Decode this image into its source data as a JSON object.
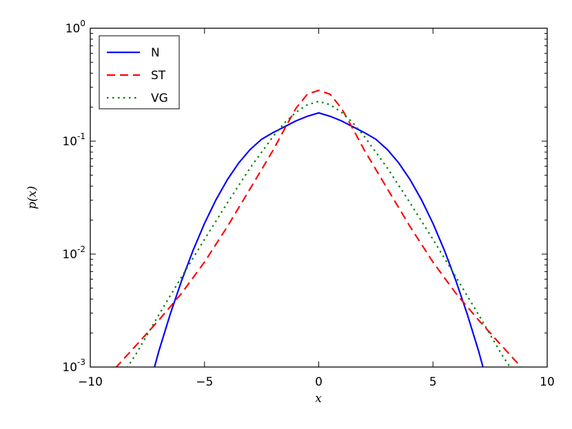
{
  "chart_data": {
    "type": "line",
    "xlabel": "x",
    "ylabel": "p(x)",
    "xlim": [
      -10,
      10
    ],
    "ylim": [
      0.001,
      1
    ],
    "yscale": "log",
    "grid": false,
    "legend_position": "top-left",
    "x_ticks": [
      {
        "value": -10,
        "label": "−10"
      },
      {
        "value": -5,
        "label": "−5"
      },
      {
        "value": 0,
        "label": "0"
      },
      {
        "value": 5,
        "label": "5"
      },
      {
        "value": 10,
        "label": "10"
      }
    ],
    "y_ticks": [
      {
        "value": 0.001,
        "base": "10",
        "exp": "-3"
      },
      {
        "value": 0.01,
        "base": "10",
        "exp": "-2"
      },
      {
        "value": 0.1,
        "base": "10",
        "exp": "-1"
      },
      {
        "value": 1,
        "base": "10",
        "exp": "0"
      }
    ],
    "series": [
      {
        "name": "N",
        "color": "#0000ff",
        "dash": "solid",
        "x": [
          -7.2,
          -7,
          -6.5,
          -6,
          -5.5,
          -5,
          -4.5,
          -4,
          -3.5,
          -3,
          -2.5,
          -2,
          -1.5,
          -1,
          -0.5,
          0,
          0.5,
          1,
          1.5,
          2,
          2.5,
          3,
          3.5,
          4,
          4.5,
          5,
          5.5,
          6,
          6.5,
          7,
          7.2
        ],
        "y": [
          0.00098,
          0.00138,
          0.00294,
          0.00584,
          0.0108,
          0.0187,
          0.0302,
          0.0456,
          0.0642,
          0.0844,
          0.104,
          0.119,
          0.134,
          0.151,
          0.166,
          0.178,
          0.166,
          0.151,
          0.134,
          0.119,
          0.104,
          0.0844,
          0.0642,
          0.0456,
          0.0302,
          0.0187,
          0.0108,
          0.00584,
          0.00294,
          0.00138,
          0.00098
        ]
      },
      {
        "name": "ST",
        "color": "#ff0000",
        "dash": "dashed",
        "x": [
          -8.9,
          -8,
          -7,
          -6,
          -5,
          -4,
          -3,
          -2,
          -1.5,
          -1,
          -0.5,
          0,
          0.5,
          1,
          1.5,
          2,
          3,
          4,
          5,
          6,
          7,
          8,
          8.9
        ],
        "y": [
          0.00098,
          0.00155,
          0.0026,
          0.0045,
          0.0085,
          0.0175,
          0.038,
          0.083,
          0.128,
          0.195,
          0.26,
          0.282,
          0.26,
          0.195,
          0.128,
          0.083,
          0.038,
          0.0175,
          0.0085,
          0.0045,
          0.0026,
          0.00155,
          0.00098
        ]
      },
      {
        "name": "VG",
        "color": "#008000",
        "dash": "dotted",
        "x": [
          -8.4,
          -8,
          -7,
          -6,
          -5,
          -4,
          -3,
          -2,
          -1.5,
          -1,
          -0.5,
          0,
          0.5,
          1,
          1.5,
          2,
          3,
          4,
          5,
          6,
          7,
          8,
          8.4
        ],
        "y": [
          0.00098,
          0.0013,
          0.0029,
          0.0063,
          0.0135,
          0.0284,
          0.058,
          0.11,
          0.145,
          0.18,
          0.21,
          0.225,
          0.21,
          0.18,
          0.145,
          0.11,
          0.058,
          0.0284,
          0.0135,
          0.0063,
          0.0029,
          0.0013,
          0.00098
        ]
      }
    ]
  }
}
